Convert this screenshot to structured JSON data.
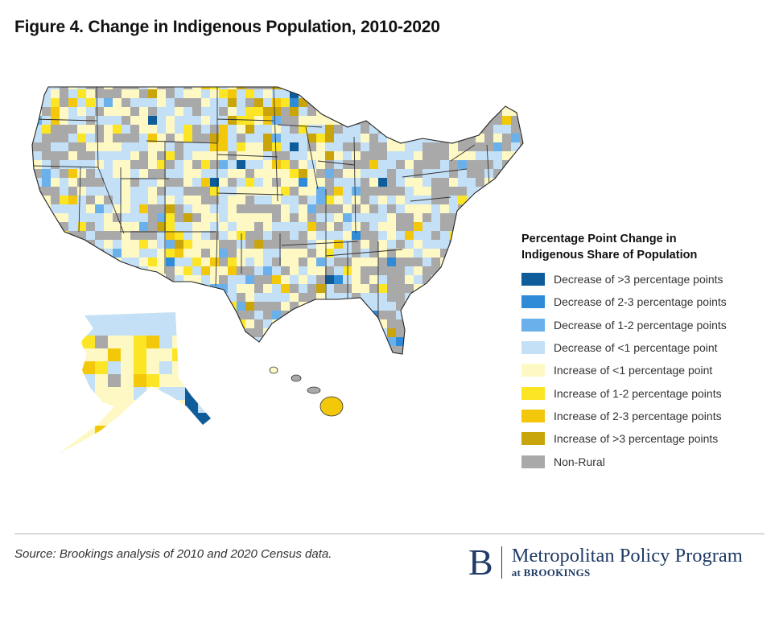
{
  "title": "Figure 4. Change in Indigenous Population, 2010-2020",
  "legend": {
    "title_line1": "Percentage Point Change in",
    "title_line2": "Indigenous Share of Population",
    "items": [
      {
        "key": "dec3plus",
        "label": "Decrease of >3 percentage points",
        "color": "#0e5c99"
      },
      {
        "key": "dec2to3",
        "label": "Decrease of 2-3 percentage points",
        "color": "#2f8bd8"
      },
      {
        "key": "dec1to2",
        "label": "Decrease of 1-2 percentage points",
        "color": "#6ab1ec"
      },
      {
        "key": "declt1",
        "label": "Decrease of <1 percentage point",
        "color": "#c4e0f6"
      },
      {
        "key": "inclt1",
        "label": "Increase of <1 percentage point",
        "color": "#fdf8c4"
      },
      {
        "key": "inc1to2",
        "label": "Increase of 1-2 percentage points",
        "color": "#fbe525"
      },
      {
        "key": "inc2to3",
        "label": "Increase of 2-3 percentage points",
        "color": "#f4c80a"
      },
      {
        "key": "inc3plus",
        "label": "Increase of >3 percentage points",
        "color": "#c9a40a"
      },
      {
        "key": "nonrural",
        "label": "Non-Rural",
        "color": "#a9a9a9"
      }
    ]
  },
  "source": "Source: Brookings analysis of 2010 and 2020 Census data.",
  "brand": {
    "mark": "B",
    "name": "Metropolitan Policy Program",
    "sub": "at BROOKINGS"
  }
}
